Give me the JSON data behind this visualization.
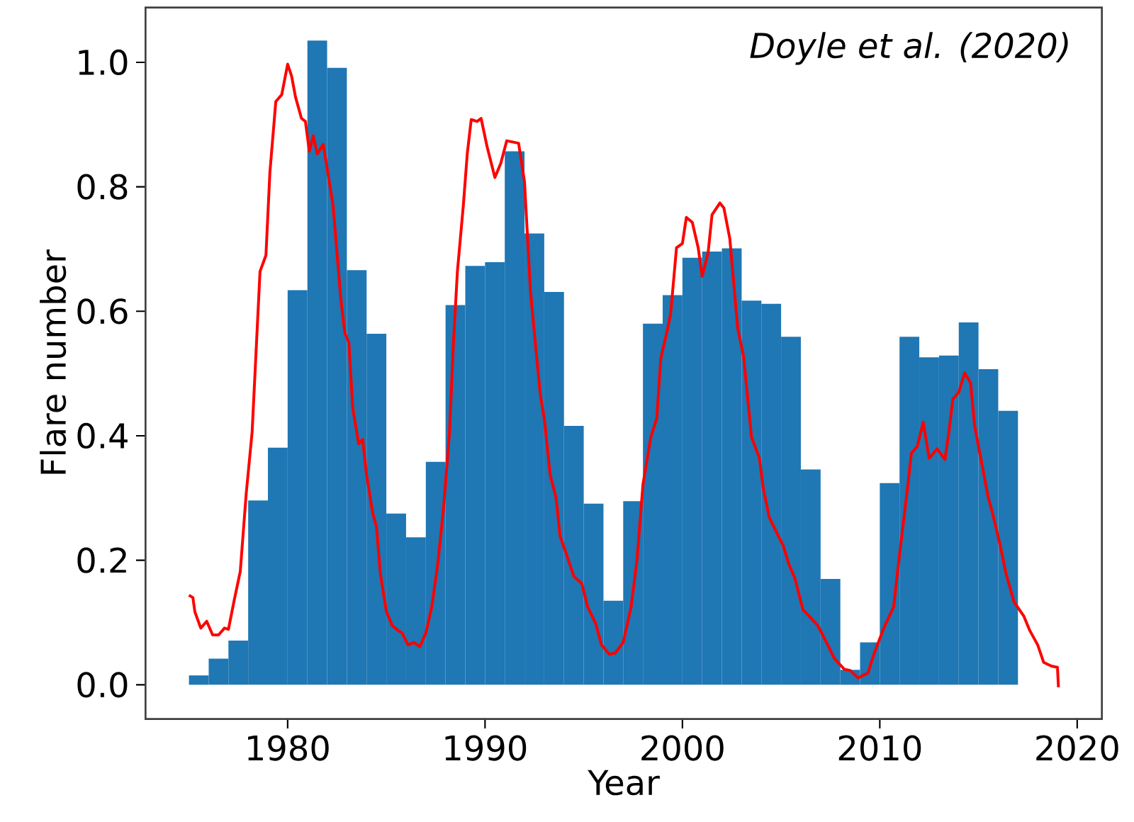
{
  "chart_data": {
    "type": "histogram",
    "xlabel": "Year",
    "ylabel": "Flare number",
    "annotations": [
      "Doyle et al. (2020)"
    ],
    "xlim": [
      1972.8,
      2021.25
    ],
    "ylim": [
      -0.055,
      1.088
    ],
    "xticks": [
      1980,
      1990,
      2000,
      2010,
      2020
    ],
    "yticks": [
      {
        "value": 0,
        "label": "0.0"
      },
      {
        "value": 0.2,
        "label": "0.2"
      },
      {
        "value": 0.4,
        "label": "0.4"
      },
      {
        "value": 0.6,
        "label": "0.6"
      },
      {
        "value": 0.8,
        "label": "0.8"
      },
      {
        "value": 1.0,
        "label": "1.0"
      }
    ],
    "grid": false,
    "marker": "none",
    "line_style": "solid",
    "series": [
      {
        "type": "histogram",
        "color": "#1f77b4",
        "bins": [
          1975,
          1976,
          1977,
          1978,
          1979,
          1980,
          1981,
          1982,
          1983,
          1984,
          1985,
          1986,
          1987,
          1988,
          1989,
          1990,
          1991,
          1992,
          1993,
          1994,
          1995,
          1996,
          1997,
          1998,
          1999,
          2000,
          2001,
          2002,
          2003,
          2004,
          2005,
          2006,
          2007,
          2008,
          2009,
          2010,
          2011,
          2012,
          2013,
          2014,
          2015,
          2016,
          2017
        ],
        "values": [
          0.015,
          0.042,
          0.071,
          0.296,
          0.381,
          0.634,
          1.035,
          0.991,
          0.666,
          0.564,
          0.275,
          0.237,
          0.358,
          0.61,
          0.673,
          0.679,
          0.857,
          0.725,
          0.631,
          0.416,
          0.291,
          0.135,
          0.295,
          0.58,
          0.626,
          0.686,
          0.696,
          0.701,
          0.617,
          0.612,
          0.559,
          0.346,
          0.17,
          0.024,
          0.068,
          0.324,
          0.559,
          0.526,
          0.529,
          0.582,
          0.507,
          0.44
        ]
      },
      {
        "type": "line",
        "color": "#ff0000",
        "x": [
          1975.0,
          1975.2,
          1975.3,
          1975.6,
          1975.9,
          1976.2,
          1976.5,
          1976.8,
          1977.0,
          1977.3,
          1977.6,
          1977.9,
          1978.2,
          1978.4,
          1978.6,
          1978.9,
          1979.1,
          1979.4,
          1979.7,
          1980.0,
          1980.2,
          1980.4,
          1980.7,
          1980.9,
          1981.1,
          1981.3,
          1981.5,
          1981.8,
          1982.0,
          1982.3,
          1982.5,
          1982.7,
          1982.9,
          1983.1,
          1983.3,
          1983.6,
          1983.8,
          1984.0,
          1984.3,
          1984.5,
          1984.7,
          1985.0,
          1985.3,
          1985.6,
          1985.8,
          1986.1,
          1986.4,
          1986.7,
          1987.0,
          1987.3,
          1987.6,
          1987.9,
          1988.2,
          1988.4,
          1988.6,
          1988.9,
          1989.1,
          1989.3,
          1989.6,
          1989.8,
          1990.1,
          1990.5,
          1990.8,
          1991.1,
          1991.4,
          1991.7,
          1992.0,
          1992.3,
          1992.5,
          1992.8,
          1993.0,
          1993.3,
          1993.6,
          1993.8,
          1994.1,
          1994.5,
          1994.9,
          1995.2,
          1995.6,
          1995.9,
          1996.3,
          1996.6,
          1997.0,
          1997.4,
          1997.7,
          1998.0,
          1998.4,
          1998.7,
          1998.9,
          1999.2,
          1999.4,
          1999.7,
          2000.0,
          2000.2,
          2000.5,
          2000.8,
          2001.0,
          2001.3,
          2001.5,
          2001.9,
          2002.1,
          2002.4,
          2002.8,
          2003.1,
          2003.5,
          2003.9,
          2004.1,
          2004.4,
          2004.8,
          2005.1,
          2005.4,
          2005.7,
          2006.1,
          2006.4,
          2006.86,
          2007.3,
          2007.7,
          2008.2,
          2008.5,
          2008.9,
          2009.4,
          2009.7,
          2010.2,
          2010.7,
          2011.0,
          2011.4,
          2011.6,
          2011.9,
          2012.2,
          2012.5,
          2012.9,
          2013.3,
          2013.5,
          2013.7,
          2014.0,
          2014.3,
          2014.6,
          2014.8,
          2015.0,
          2015.5,
          2015.7,
          2016.1,
          2016.4,
          2016.8,
          2017.3,
          2017.6,
          2018.0,
          2018.3,
          2018.7,
          2019.0,
          2019.05
        ],
        "values": [
          0.144,
          0.14,
          0.117,
          0.091,
          0.102,
          0.08,
          0.08,
          0.091,
          0.089,
          0.137,
          0.182,
          0.307,
          0.406,
          0.535,
          0.664,
          0.69,
          0.823,
          0.937,
          0.948,
          0.997,
          0.978,
          0.944,
          0.91,
          0.905,
          0.857,
          0.882,
          0.853,
          0.868,
          0.83,
          0.77,
          0.694,
          0.618,
          0.565,
          0.55,
          0.444,
          0.387,
          0.394,
          0.337,
          0.277,
          0.254,
          0.178,
          0.118,
          0.095,
          0.087,
          0.083,
          0.064,
          0.068,
          0.061,
          0.083,
          0.125,
          0.193,
          0.284,
          0.406,
          0.55,
          0.664,
          0.77,
          0.853,
          0.908,
          0.905,
          0.91,
          0.865,
          0.815,
          0.838,
          0.874,
          0.872,
          0.87,
          0.808,
          0.633,
          0.565,
          0.466,
          0.428,
          0.337,
          0.3,
          0.239,
          0.212,
          0.174,
          0.163,
          0.125,
          0.099,
          0.064,
          0.049,
          0.051,
          0.068,
          0.125,
          0.201,
          0.322,
          0.398,
          0.428,
          0.523,
          0.565,
          0.595,
          0.702,
          0.709,
          0.751,
          0.743,
          0.702,
          0.656,
          0.694,
          0.755,
          0.774,
          0.766,
          0.717,
          0.573,
          0.527,
          0.398,
          0.364,
          0.315,
          0.269,
          0.243,
          0.224,
          0.193,
          0.171,
          0.121,
          0.111,
          0.095,
          0.068,
          0.042,
          0.025,
          0.023,
          0.011,
          0.019,
          0.049,
          0.091,
          0.125,
          0.209,
          0.315,
          0.372,
          0.383,
          0.422,
          0.364,
          0.379,
          0.362,
          0.406,
          0.459,
          0.47,
          0.501,
          0.485,
          0.417,
          0.383,
          0.3,
          0.277,
          0.224,
          0.178,
          0.133,
          0.11,
          0.087,
          0.064,
          0.036,
          0.03,
          0.028,
          -0.004
        ]
      }
    ]
  }
}
